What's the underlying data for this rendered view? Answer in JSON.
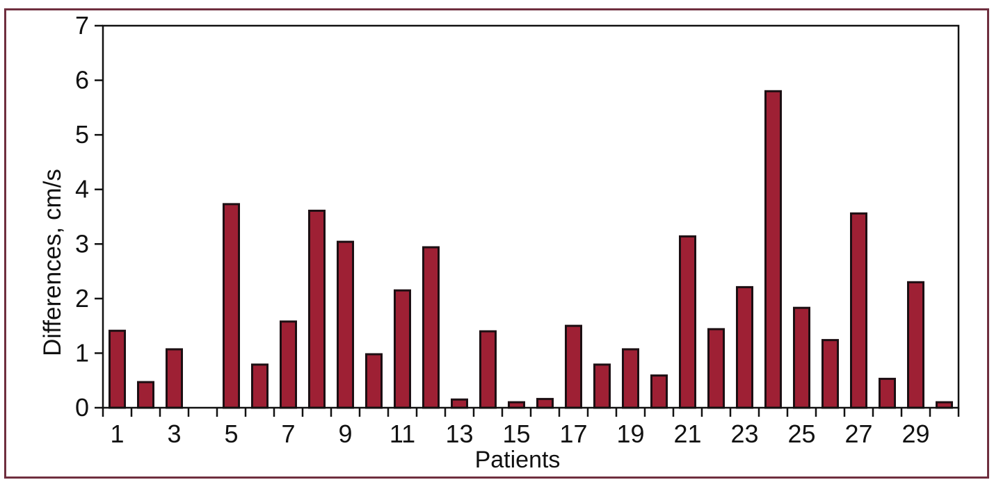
{
  "figure": {
    "frame_color": "#6f2f3f",
    "background_color": "#ffffff"
  },
  "chart_data": {
    "type": "bar",
    "title": "",
    "xlabel": "Patients",
    "ylabel": "Differences, cm/s",
    "categories": [
      1,
      2,
      3,
      4,
      5,
      6,
      7,
      8,
      9,
      10,
      11,
      12,
      13,
      14,
      15,
      16,
      17,
      18,
      19,
      20,
      21,
      22,
      23,
      24,
      25,
      26,
      27,
      28,
      29,
      30
    ],
    "values": [
      1.41,
      0.47,
      1.07,
      0,
      3.73,
      0.79,
      1.58,
      3.61,
      3.04,
      0.98,
      2.15,
      2.94,
      0.15,
      1.4,
      0.1,
      0.16,
      1.5,
      0.79,
      1.07,
      0.59,
      3.14,
      1.44,
      2.21,
      5.8,
      1.83,
      1.24,
      3.56,
      0.53,
      2.3,
      0.1
    ],
    "ylim": [
      0,
      7
    ],
    "yticks": [
      0,
      1,
      2,
      3,
      4,
      5,
      6,
      7
    ],
    "xtick_labels": [
      "1",
      "3",
      "5",
      "7",
      "9",
      "11",
      "13",
      "15",
      "17",
      "19",
      "21",
      "23",
      "25",
      "27",
      "29"
    ],
    "xtick_label_positions": [
      1,
      3,
      5,
      7,
      9,
      11,
      13,
      15,
      17,
      19,
      21,
      23,
      25,
      27,
      29
    ],
    "bar_color": "#9e2034",
    "bar_edge_color": "#1c0f13",
    "axis_color": "#111111",
    "grid": false,
    "legend": null
  }
}
